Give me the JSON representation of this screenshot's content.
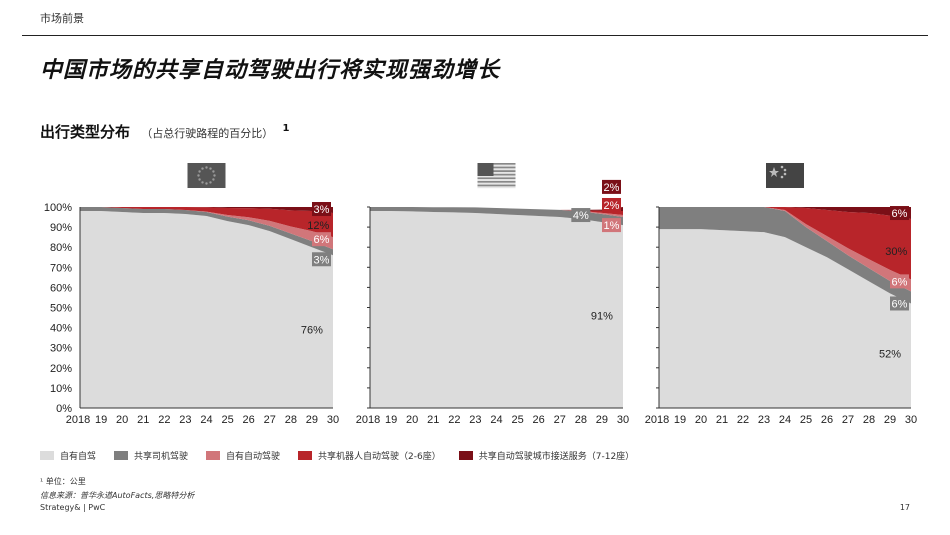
{
  "header": {
    "section": "市场前景"
  },
  "title": "中国市场的共享自动驾驶出行将实现强劲增长",
  "subtitle": {
    "text": "出行类型分布",
    "note": "（占总行驶路程的百分比）",
    "sup": "1"
  },
  "colors": {
    "own_drive": "#dcdcdc",
    "shared_manual": "#7f7f7f",
    "own_auto": "#d1767a",
    "shared_auto_small": "#b8252a",
    "shared_auto_large": "#7a0f17"
  },
  "chart_data": [
    {
      "type": "area",
      "region": "EU",
      "flag_icon": "eu-flag-icon",
      "x": [
        "2018",
        "19",
        "20",
        "21",
        "22",
        "23",
        "24",
        "25",
        "26",
        "27",
        "28",
        "29",
        "30"
      ],
      "yticks": [
        "100%",
        "90%",
        "80%",
        "70%",
        "60%",
        "50%",
        "40%",
        "30%",
        "20%",
        "10%",
        "0%"
      ],
      "ylim": [
        0,
        100
      ],
      "series": [
        {
          "name": "自有自驾",
          "values": [
            98,
            98,
            97.5,
            97,
            97,
            96.5,
            95.5,
            93,
            91,
            88,
            84,
            80,
            76
          ]
        },
        {
          "name": "共享司机驾驶",
          "values": [
            2,
            2,
            2,
            2,
            2,
            2,
            2,
            2.2,
            2.4,
            2.6,
            2.8,
            3,
            3
          ]
        },
        {
          "name": "自有自动驾驶",
          "values": [
            0,
            0,
            0,
            0,
            0,
            0,
            0.2,
            0.8,
            1.5,
            2.5,
            3.5,
            5,
            6
          ]
        },
        {
          "name": "共享机器人自动驾驶（2-6座）",
          "values": [
            0,
            0,
            0.5,
            1,
            1,
            1.5,
            2.2,
            3.5,
            4.5,
            6,
            8,
            10,
            12
          ]
        },
        {
          "name": "共享自动驾驶城市接送服务（7-12座）",
          "values": [
            0,
            0,
            0,
            0,
            0,
            0,
            0.1,
            0.5,
            0.6,
            0.9,
            1.7,
            2,
            3
          ]
        }
      ],
      "labels": [
        {
          "text": "3%",
          "x": "30",
          "y": 99,
          "box": "shared_auto_large"
        },
        {
          "text": "12%",
          "x": "30",
          "y": 91,
          "box": ""
        },
        {
          "text": "6%",
          "x": "30",
          "y": 84,
          "box": "own_auto"
        },
        {
          "text": "3%",
          "x": "30",
          "y": 74,
          "box": "shared_manual"
        },
        {
          "text": "76%",
          "x": "29",
          "y": 39,
          "box": ""
        }
      ]
    },
    {
      "type": "area",
      "region": "US",
      "flag_icon": "us-flag-icon",
      "x": [
        "2018",
        "19",
        "20",
        "21",
        "22",
        "23",
        "24",
        "25",
        "26",
        "27",
        "28",
        "29",
        "30"
      ],
      "yticks": [],
      "ylim": [
        0,
        100
      ],
      "series": [
        {
          "name": "自有自驾",
          "values": [
            98,
            98,
            97.8,
            97.5,
            97.3,
            97,
            96.5,
            96,
            95.5,
            95,
            94,
            92.5,
            91
          ]
        },
        {
          "name": "共享司机驾驶",
          "values": [
            2,
            2,
            2.2,
            2.4,
            2.6,
            2.8,
            3,
            3.2,
            3.4,
            3.6,
            3.8,
            4,
            4
          ]
        },
        {
          "name": "自有自动驾驶",
          "values": [
            0,
            0,
            0,
            0,
            0,
            0,
            0,
            0,
            0,
            0,
            0.3,
            0.6,
            1
          ]
        },
        {
          "name": "共享机器人自动驾驶（2-6座）",
          "values": [
            0,
            0,
            0,
            0,
            0,
            0,
            0,
            0,
            0,
            0,
            0.3,
            1,
            2
          ]
        },
        {
          "name": "共享自动驾驶城市接送服务（7-12座）",
          "values": [
            0,
            0,
            0,
            0,
            0,
            0,
            0,
            0,
            0,
            0,
            0.2,
            0.6,
            2
          ]
        }
      ],
      "labels": [
        {
          "text": "2%",
          "x": "30",
          "y": 110,
          "box": "shared_auto_large"
        },
        {
          "text": "2%",
          "x": "30",
          "y": 101,
          "box": "shared_auto_small"
        },
        {
          "text": "1%",
          "x": "30",
          "y": 91,
          "box": "own_auto"
        },
        {
          "text": "4%",
          "x": "28",
          "y": 96,
          "box": "shared_manual"
        },
        {
          "text": "91%",
          "x": "29",
          "y": 46,
          "box": ""
        }
      ]
    },
    {
      "type": "area",
      "region": "CN",
      "flag_icon": "cn-flag-icon",
      "x": [
        "2018",
        "19",
        "20",
        "21",
        "22",
        "23",
        "24",
        "25",
        "26",
        "27",
        "28",
        "29",
        "30"
      ],
      "yticks": [],
      "ylim": [
        0,
        100
      ],
      "series": [
        {
          "name": "自有自驾",
          "values": [
            89,
            89,
            89,
            88.5,
            88,
            87.5,
            85,
            80,
            75,
            69,
            63,
            57,
            52
          ]
        },
        {
          "name": "共享司机驾驶",
          "values": [
            11,
            11,
            11,
            11.5,
            12,
            12.5,
            13,
            10,
            8,
            7,
            6.5,
            6.2,
            6
          ]
        },
        {
          "name": "自有自动驾驶",
          "values": [
            0,
            0,
            0,
            0,
            0,
            0,
            0.5,
            1.5,
            2.5,
            3.5,
            4.5,
            5.5,
            6
          ]
        },
        {
          "name": "共享机器人自动驾驶（2-6座）",
          "values": [
            0,
            0,
            0,
            0,
            0,
            0,
            1.5,
            8,
            13,
            18,
            23,
            27,
            30
          ]
        },
        {
          "name": "共享自动驾驶城市接送服务（7-12座）",
          "values": [
            0,
            0,
            0,
            0,
            0,
            0,
            0,
            0.5,
            1.5,
            2.5,
            3,
            4.3,
            6
          ]
        }
      ],
      "labels": [
        {
          "text": "6%",
          "x": "30",
          "y": 97,
          "box": "shared_auto_large"
        },
        {
          "text": "30%",
          "x": "30",
          "y": 78,
          "box": ""
        },
        {
          "text": "6%",
          "x": "30",
          "y": 63,
          "box": "own_auto"
        },
        {
          "text": "6%",
          "x": "30",
          "y": 52,
          "box": "shared_manual"
        },
        {
          "text": "52%",
          "x": "29",
          "y": 27,
          "box": ""
        }
      ]
    }
  ],
  "legend": [
    {
      "label": "自有自驾",
      "color_key": "own_drive"
    },
    {
      "label": "共享司机驾驶",
      "color_key": "shared_manual"
    },
    {
      "label": "自有自动驾驶",
      "color_key": "own_auto"
    },
    {
      "label": "共享机器人自动驾驶（2-6座）",
      "color_key": "shared_auto_small"
    },
    {
      "label": "共享自动驾驶城市接送服务（7-12座）",
      "color_key": "shared_auto_large"
    }
  ],
  "footnotes": {
    "note1": "¹ 单位：公里",
    "source": "信息来源：普华永道AutoFacts,思略特分析",
    "brand": "Strategy& | PwC",
    "page": "17"
  }
}
